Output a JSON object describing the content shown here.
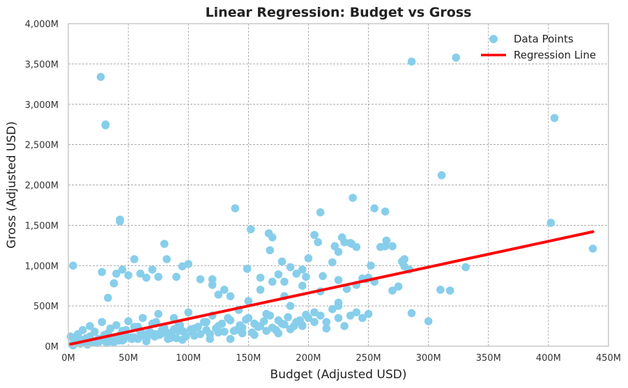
{
  "chart_data": {
    "type": "scatter",
    "title": "Linear Regression: Budget vs Gross",
    "xlabel": "Budget (Adjusted USD)",
    "ylabel": "Gross (Adjusted USD)",
    "xlim": [
      0,
      450
    ],
    "ylim": [
      0,
      4000
    ],
    "x_ticks": [
      "0M",
      "50M",
      "100M",
      "150M",
      "200M",
      "250M",
      "300M",
      "350M",
      "400M",
      "450M"
    ],
    "y_ticks": [
      "0M",
      "500M",
      "1,000M",
      "1,500M",
      "2,000M",
      "2,500M",
      "3,000M",
      "3,500M",
      "4,000M"
    ],
    "grid": true,
    "legend_position": "top-right",
    "colors": {
      "points": "#87ceeb",
      "line": "#ff0000",
      "grid": "#8c8c8c",
      "frame": "#c8c8c8"
    },
    "series": [
      {
        "name": "Data Points",
        "kind": "scatter",
        "x": [
          2,
          5,
          8,
          10,
          12,
          15,
          18,
          20,
          22,
          25,
          28,
          30,
          32,
          35,
          38,
          40,
          42,
          45,
          48,
          50,
          55,
          58,
          60,
          62,
          65,
          70,
          72,
          75,
          78,
          80,
          85,
          88,
          90,
          92,
          95,
          100,
          105,
          110,
          115,
          118,
          120,
          125,
          130,
          135,
          140,
          142,
          145,
          150,
          155,
          160,
          165,
          170,
          175,
          180,
          185,
          190,
          195,
          200,
          205,
          210,
          215,
          220,
          225,
          230,
          235,
          240,
          245,
          250,
          5,
          15,
          25,
          35,
          45,
          55,
          65,
          75,
          85,
          95,
          105,
          115,
          125,
          135,
          145,
          155,
          165,
          175,
          185,
          195,
          205,
          215,
          225,
          3,
          8,
          12,
          18,
          22,
          28,
          33,
          38,
          43,
          48,
          53,
          58,
          63,
          68,
          73,
          78,
          83,
          88,
          93,
          98,
          103,
          108,
          113,
          118,
          123,
          128,
          133,
          138,
          143,
          148,
          153,
          158,
          163,
          168,
          173,
          178,
          183,
          188,
          193,
          198,
          4,
          10,
          16,
          20,
          24,
          30,
          36,
          40,
          46,
          52,
          56,
          62,
          66,
          72,
          76,
          82,
          86,
          92,
          96,
          102,
          27,
          31,
          31,
          43,
          43,
          4,
          28,
          33,
          38,
          40,
          45,
          50,
          55,
          60,
          65,
          70,
          75,
          80,
          82,
          90,
          95,
          100,
          110,
          120,
          125,
          130,
          139,
          149,
          152,
          160,
          167,
          168,
          170,
          175,
          178,
          180,
          185,
          190,
          195,
          198,
          200,
          205,
          208,
          210,
          212,
          220,
          222,
          225,
          228,
          230,
          235,
          237,
          240,
          245,
          248,
          250,
          252,
          255,
          260,
          264,
          265,
          270,
          275,
          278,
          280,
          284,
          286,
          300,
          310,
          311,
          318,
          323,
          331,
          402,
          405,
          437,
          225,
          232,
          236,
          264,
          280,
          286,
          120,
          135,
          150,
          160,
          170,
          180,
          195,
          210,
          225,
          240,
          255,
          270
        ],
        "y": [
          120,
          80,
          150,
          60,
          200,
          100,
          250,
          50,
          180,
          90,
          300,
          140,
          40,
          220,
          110,
          260,
          70,
          190,
          130,
          310,
          240,
          90,
          180,
          350,
          150,
          280,
          120,
          400,
          200,
          230,
          160,
          350,
          100,
          270,
          190,
          420,
          220,
          150,
          300,
          90,
          380,
          250,
          180,
          320,
          200,
          450,
          160,
          350,
          280,
          250,
          400,
          230,
          320,
          270,
          500,
          300,
          260,
          350,
          420,
          380,
          300,
          460,
          500,
          250,
          380,
          420,
          350,
          400,
          30,
          60,
          45,
          90,
          70,
          110,
          60,
          150,
          100,
          80,
          130,
          200,
          170,
          90,
          230,
          140,
          190,
          160,
          210,
          250,
          300,
          220,
          350,
          20,
          40,
          80,
          120,
          60,
          100,
          160,
          50,
          140,
          200,
          90,
          240,
          130,
          180,
          300,
          160,
          90,
          210,
          260,
          120,
          180,
          240,
          300,
          150,
          220,
          280,
          350,
          190,
          260,
          330,
          170,
          240,
          310,
          380,
          200,
          280,
          360,
          250,
          320,
          390,
          10,
          30,
          20,
          50,
          40,
          70,
          60,
          90,
          80,
          110,
          100,
          130,
          120,
          150,
          140,
          170,
          160,
          190,
          180,
          210,
          3340,
          2750,
          2740,
          1570,
          1550,
          1000,
          920,
          600,
          780,
          900,
          950,
          880,
          1080,
          900,
          850,
          950,
          860,
          1270,
          1080,
          860,
          990,
          1020,
          830,
          760,
          640,
          700,
          1710,
          960,
          1450,
          850,
          1400,
          1190,
          1350,
          890,
          1050,
          800,
          980,
          900,
          950,
          860,
          1090,
          1380,
          1290,
          1660,
          870,
          1040,
          1240,
          820,
          1350,
          1290,
          1280,
          1840,
          1230,
          840,
          830,
          850,
          1000,
          1710,
          1230,
          1670,
          1310,
          1240,
          740,
          1050,
          1080,
          950,
          3530,
          310,
          700,
          2120,
          690,
          3580,
          980,
          1530,
          2830,
          1210,
          1170,
          710,
          1270,
          1240,
          990,
          410,
          830,
          620,
          560,
          700,
          800,
          620,
          750,
          680,
          540,
          760,
          800,
          690
        ]
      },
      {
        "name": "Regression Line",
        "kind": "line",
        "x": [
          2,
          437
        ],
        "y": [
          25,
          1420
        ]
      }
    ]
  }
}
